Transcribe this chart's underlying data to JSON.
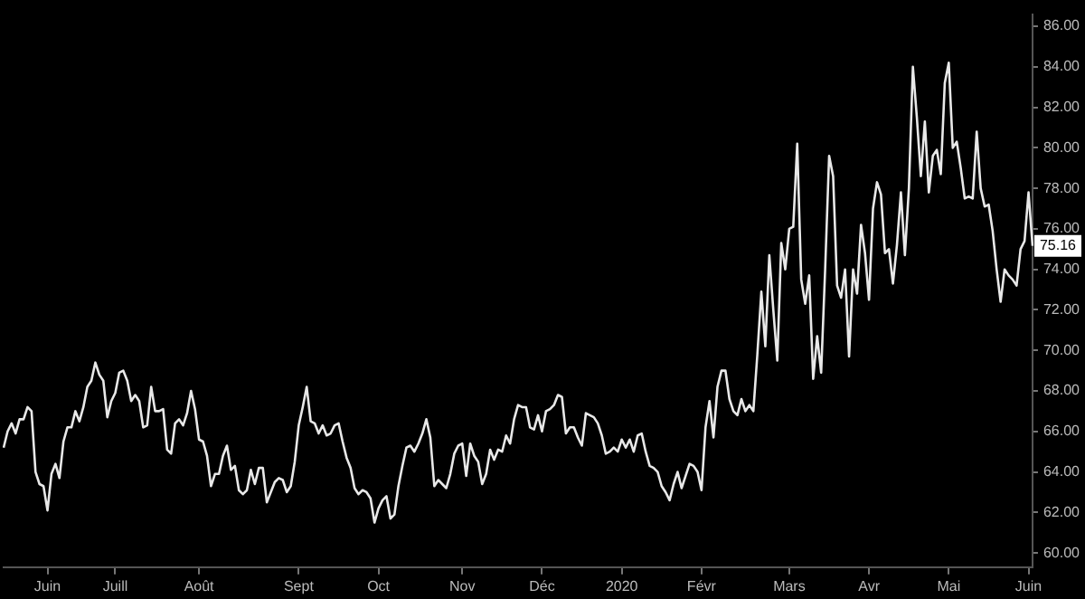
{
  "chart_data": {
    "type": "line",
    "color": "#e8e8e8",
    "marker": "none",
    "grid": false,
    "legend": false,
    "categories": [
      null,
      null,
      null,
      null,
      null,
      null,
      null,
      null,
      null,
      null,
      null,
      "Juin",
      null,
      null,
      null,
      null,
      null,
      null,
      null,
      null,
      null,
      null,
      null,
      null,
      null,
      null,
      null,
      null,
      "Juill",
      null,
      null,
      null,
      null,
      null,
      null,
      null,
      null,
      null,
      null,
      null,
      null,
      null,
      null,
      null,
      null,
      null,
      null,
      null,
      null,
      "Août",
      null,
      null,
      null,
      null,
      null,
      null,
      null,
      null,
      null,
      null,
      null,
      null,
      null,
      null,
      null,
      null,
      null,
      null,
      null,
      null,
      null,
      null,
      null,
      null,
      "Sept",
      null,
      null,
      null,
      null,
      null,
      null,
      null,
      null,
      null,
      null,
      null,
      null,
      null,
      null,
      null,
      null,
      null,
      null,
      null,
      "Oct",
      null,
      null,
      null,
      null,
      null,
      null,
      null,
      null,
      null,
      null,
      null,
      null,
      null,
      null,
      null,
      null,
      null,
      null,
      null,
      null,
      "Nov",
      null,
      null,
      null,
      null,
      null,
      null,
      null,
      null,
      null,
      null,
      null,
      null,
      null,
      null,
      null,
      null,
      null,
      null,
      null,
      "Déc",
      null,
      null,
      null,
      null,
      null,
      null,
      null,
      null,
      null,
      null,
      null,
      null,
      null,
      null,
      null,
      null,
      null,
      null,
      null,
      "2020",
      null,
      null,
      null,
      null,
      null,
      null,
      null,
      null,
      null,
      null,
      null,
      null,
      null,
      null,
      null,
      null,
      null,
      null,
      null,
      "Févr",
      null,
      null,
      null,
      null,
      null,
      null,
      null,
      null,
      null,
      null,
      null,
      null,
      null,
      null,
      null,
      null,
      null,
      null,
      null,
      null,
      null,
      "Mars",
      null,
      null,
      null,
      null,
      null,
      null,
      null,
      null,
      null,
      null,
      null,
      null,
      null,
      null,
      null,
      null,
      null,
      null,
      null,
      "Avr",
      null,
      null,
      null,
      null,
      null,
      null,
      null,
      null,
      null,
      null,
      null,
      null,
      null,
      null,
      null,
      null,
      null,
      null,
      null,
      "Mai",
      null,
      null,
      null,
      null,
      null,
      null,
      null,
      null,
      null,
      null,
      null,
      null,
      null,
      null,
      null,
      null,
      null,
      null,
      null,
      "Juin",
      null
    ],
    "values": [
      65.2,
      66.0,
      66.4,
      65.9,
      66.6,
      66.6,
      67.2,
      67.0,
      64.0,
      63.4,
      63.3,
      62.1,
      63.9,
      64.4,
      63.7,
      65.5,
      66.2,
      66.2,
      67.0,
      66.5,
      67.2,
      68.2,
      68.5,
      69.4,
      68.8,
      68.5,
      66.7,
      67.5,
      67.9,
      68.9,
      69.0,
      68.5,
      67.5,
      67.8,
      67.5,
      66.2,
      66.3,
      68.2,
      67.0,
      67.0,
      67.1,
      65.1,
      64.9,
      66.4,
      66.6,
      66.3,
      66.9,
      68.0,
      67.1,
      65.6,
      65.5,
      64.8,
      63.3,
      63.9,
      63.9,
      64.8,
      65.3,
      64.1,
      64.3,
      63.1,
      62.9,
      63.1,
      64.1,
      63.4,
      64.2,
      64.2,
      62.5,
      63.0,
      63.5,
      63.7,
      63.6,
      63.0,
      63.3,
      64.5,
      66.3,
      67.2,
      68.2,
      66.5,
      66.4,
      65.9,
      66.3,
      65.8,
      65.9,
      66.3,
      66.4,
      65.5,
      64.7,
      64.2,
      63.2,
      62.9,
      63.1,
      63.0,
      62.7,
      61.5,
      62.2,
      62.6,
      62.8,
      61.7,
      61.9,
      63.3,
      64.3,
      65.2,
      65.3,
      65.0,
      65.4,
      65.9,
      66.6,
      65.7,
      63.3,
      63.6,
      63.4,
      63.2,
      63.9,
      64.9,
      65.3,
      65.4,
      63.8,
      65.4,
      64.8,
      64.5,
      63.4,
      63.9,
      65.1,
      64.6,
      65.1,
      65.0,
      65.8,
      65.4,
      66.6,
      67.3,
      67.2,
      67.2,
      66.2,
      66.1,
      66.8,
      66.0,
      67.0,
      67.1,
      67.3,
      67.8,
      67.7,
      65.9,
      66.2,
      66.2,
      65.7,
      65.3,
      66.9,
      66.8,
      66.7,
      66.4,
      65.8,
      64.9,
      65.0,
      65.2,
      65.0,
      65.6,
      65.2,
      65.6,
      65.0,
      65.8,
      65.9,
      65.0,
      64.3,
      64.2,
      64.0,
      63.3,
      63.0,
      62.6,
      63.4,
      64.0,
      63.2,
      63.8,
      64.4,
      64.3,
      64.0,
      63.1,
      66.2,
      67.5,
      65.7,
      68.2,
      69.0,
      69.0,
      67.6,
      67.0,
      66.8,
      67.6,
      67.0,
      67.3,
      67.0,
      69.8,
      72.9,
      70.2,
      74.7,
      72.0,
      69.5,
      75.3,
      74.0,
      76.0,
      76.1,
      80.2,
      73.5,
      72.3,
      73.7,
      68.6,
      70.7,
      68.9,
      74.0,
      79.6,
      78.6,
      73.2,
      72.6,
      74.0,
      69.7,
      74.0,
      72.8,
      76.2,
      74.8,
      72.5,
      77.0,
      78.3,
      77.7,
      74.8,
      75.0,
      73.3,
      75.2,
      77.8,
      74.7,
      78.0,
      84.0,
      81.5,
      78.6,
      81.3,
      77.8,
      79.6,
      79.9,
      78.7,
      83.2,
      84.2,
      80.0,
      80.3,
      79.0,
      77.5,
      77.6,
      77.5,
      80.8,
      78.0,
      77.1,
      77.2,
      75.9,
      74.0,
      72.4,
      74.0,
      73.7,
      73.5,
      73.2,
      75.0,
      75.4,
      77.8,
      75.16
    ],
    "ylim": [
      59.3,
      86.6
    ],
    "yticks": [
      {
        "value": 60,
        "label": "60.00"
      },
      {
        "value": 62,
        "label": "62.00"
      },
      {
        "value": 64,
        "label": "64.00"
      },
      {
        "value": 66,
        "label": "66.00"
      },
      {
        "value": 68,
        "label": "68.00"
      },
      {
        "value": 70,
        "label": "70.00"
      },
      {
        "value": 72,
        "label": "72.00"
      },
      {
        "value": 74,
        "label": "74.00"
      },
      {
        "value": 76,
        "label": "76.00"
      },
      {
        "value": 78,
        "label": "78.00"
      },
      {
        "value": 80,
        "label": "80.00"
      },
      {
        "value": 82,
        "label": "82.00"
      },
      {
        "value": 84,
        "label": "84.00"
      },
      {
        "value": 86,
        "label": "86.00"
      }
    ],
    "annotations": [
      {
        "text": "75.16",
        "y": 75.16
      }
    ]
  }
}
